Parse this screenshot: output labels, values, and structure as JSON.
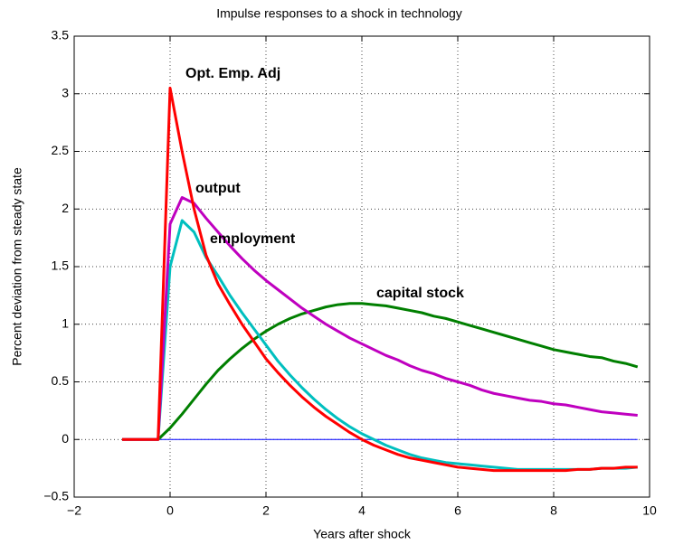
{
  "chart_data": {
    "type": "line",
    "title": "Impulse responses to a shock in technology",
    "xlabel": "Years after shock",
    "ylabel": "Percent deviation from steady state",
    "annotations": [
      "Opt. Emp. Adj",
      "output",
      "employment",
      "capital stock"
    ],
    "x": [
      -1,
      -0.75,
      -0.5,
      -0.25,
      0,
      0.25,
      0.5,
      0.75,
      1,
      1.25,
      1.5,
      1.75,
      2,
      2.25,
      2.5,
      2.75,
      3,
      3.25,
      3.5,
      3.75,
      4,
      4.25,
      4.5,
      4.75,
      5,
      5.25,
      5.5,
      5.75,
      6,
      6.25,
      6.5,
      6.75,
      7,
      7.25,
      7.5,
      7.75,
      8,
      8.25,
      8.5,
      8.75,
      9,
      9.25,
      9.5,
      9.75
    ],
    "series": [
      {
        "color": "#0000ff",
        "values": [
          0,
          0,
          0,
          0,
          0,
          0,
          0,
          0,
          0,
          0,
          0,
          0,
          0,
          0,
          0,
          0,
          0,
          0,
          0,
          0,
          0,
          0,
          0,
          0,
          0,
          0,
          0,
          0,
          0,
          0,
          0,
          0,
          0,
          0,
          0,
          0,
          0,
          0,
          0,
          0,
          0,
          0,
          0,
          0
        ]
      },
      {
        "color": "#007f00",
        "values": [
          0,
          0,
          0,
          0,
          0.1,
          0.22,
          0.35,
          0.48,
          0.6,
          0.7,
          0.79,
          0.87,
          0.94,
          1.0,
          1.05,
          1.09,
          1.12,
          1.15,
          1.17,
          1.18,
          1.18,
          1.17,
          1.16,
          1.14,
          1.12,
          1.1,
          1.07,
          1.05,
          1.02,
          0.99,
          0.96,
          0.93,
          0.9,
          0.87,
          0.84,
          0.81,
          0.78,
          0.76,
          0.74,
          0.72,
          0.71,
          0.68,
          0.66,
          0.63
        ]
      },
      {
        "color": "#00bfbf",
        "values": [
          0,
          0,
          0,
          0,
          1.5,
          1.9,
          1.8,
          1.58,
          1.42,
          1.25,
          1.1,
          0.96,
          0.82,
          0.68,
          0.56,
          0.45,
          0.35,
          0.26,
          0.18,
          0.11,
          0.05,
          0,
          -0.05,
          -0.09,
          -0.13,
          -0.16,
          -0.18,
          -0.2,
          -0.21,
          -0.22,
          -0.23,
          -0.24,
          -0.25,
          -0.26,
          -0.26,
          -0.26,
          -0.26,
          -0.26,
          -0.26,
          -0.26,
          -0.25,
          -0.25,
          -0.25,
          -0.24
        ]
      },
      {
        "color": "#bf00bf",
        "values": [
          0,
          0,
          0,
          0,
          1.87,
          2.1,
          2.05,
          1.92,
          1.8,
          1.68,
          1.57,
          1.47,
          1.38,
          1.3,
          1.22,
          1.14,
          1.07,
          1.0,
          0.94,
          0.88,
          0.83,
          0.78,
          0.73,
          0.69,
          0.64,
          0.6,
          0.57,
          0.53,
          0.5,
          0.47,
          0.43,
          0.4,
          0.38,
          0.36,
          0.34,
          0.33,
          0.31,
          0.3,
          0.28,
          0.26,
          0.24,
          0.23,
          0.22,
          0.21
        ]
      },
      {
        "color": "#ff0000",
        "values": [
          0,
          0,
          0,
          0,
          3.05,
          2.5,
          2.0,
          1.6,
          1.35,
          1.17,
          1.0,
          0.85,
          0.7,
          0.58,
          0.47,
          0.37,
          0.28,
          0.2,
          0.13,
          0.06,
          0,
          -0.05,
          -0.09,
          -0.13,
          -0.16,
          -0.18,
          -0.2,
          -0.22,
          -0.24,
          -0.25,
          -0.26,
          -0.27,
          -0.27,
          -0.27,
          -0.27,
          -0.27,
          -0.27,
          -0.27,
          -0.26,
          -0.26,
          -0.25,
          -0.25,
          -0.24,
          -0.24
        ]
      }
    ],
    "xlim": [
      -2,
      10
    ],
    "xticks": [
      {
        "value": -2,
        "label": "−2"
      },
      0,
      2,
      4,
      6,
      8,
      10
    ],
    "ylim": [
      -0.5,
      3.5
    ],
    "yticks": [
      {
        "value": -0.5,
        "label": "−0.5"
      },
      0,
      0.5,
      1,
      1.5,
      2,
      2.5,
      3,
      3.5
    ],
    "grid": true
  }
}
